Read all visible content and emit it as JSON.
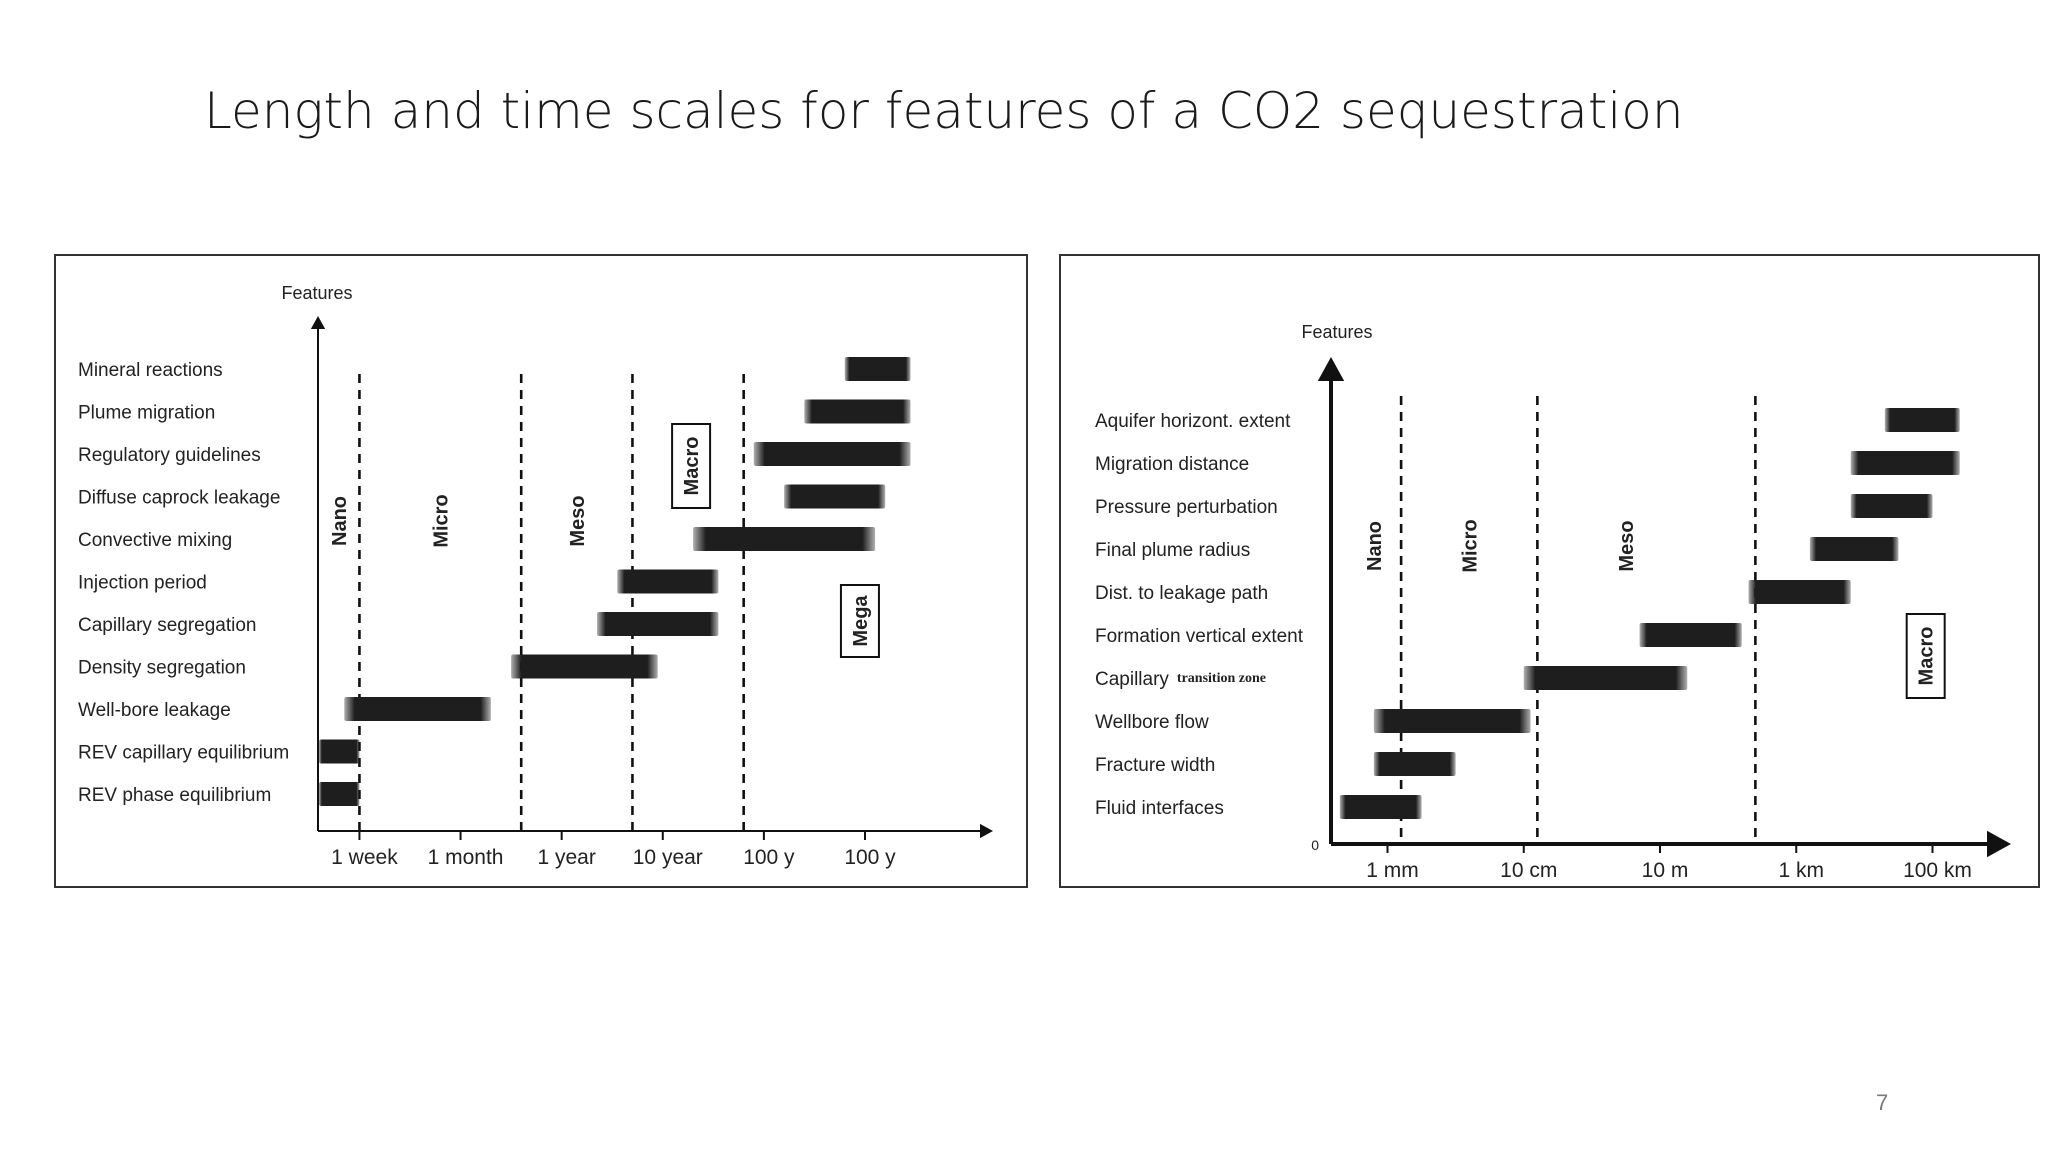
{
  "slide": {
    "title": "Length and time scales for features of a CO2 sequestration",
    "page_number": "7"
  },
  "colors": {
    "bar": "#1e1e1e",
    "axis": "#111111",
    "frame": "#333333"
  },
  "chart_data": [
    {
      "type": "bar",
      "orientation": "horizontal-range",
      "ylabel": "Features",
      "xlabel": "",
      "x_ticks": [
        "1 week",
        "1 month",
        "1 year",
        "10 year",
        "100 y",
        "100 y"
      ],
      "x_range": [
        -0.4,
        5.9
      ],
      "scale_regions": [
        "Nano",
        "Micro",
        "Meso",
        "Macro",
        "Mega"
      ],
      "region_dividers": [
        0.0,
        1.6,
        2.7,
        3.8
      ],
      "features": [
        {
          "name": "Mineral reactions",
          "start": 4.8,
          "end": 5.45
        },
        {
          "name": "Plume migration",
          "start": 4.4,
          "end": 5.45
        },
        {
          "name": "Regulatory guidelines",
          "start": 3.9,
          "end": 5.45
        },
        {
          "name": "Diffuse caprock leakage",
          "start": 4.2,
          "end": 5.2
        },
        {
          "name": "Convective mixing",
          "start": 3.3,
          "end": 5.1
        },
        {
          "name": "Injection period",
          "start": 2.55,
          "end": 3.55
        },
        {
          "name": "Capillary segregation",
          "start": 2.35,
          "end": 3.55
        },
        {
          "name": "Density segregation",
          "start": 1.5,
          "end": 2.95
        },
        {
          "name": "Well-bore leakage",
          "start": -0.15,
          "end": 1.3
        },
        {
          "name": "REV capillary equilibrium",
          "start": -0.4,
          "end": 0.0
        },
        {
          "name": "REV phase equilibrium",
          "start": -0.4,
          "end": 0.0
        }
      ]
    },
    {
      "type": "bar",
      "orientation": "horizontal-range",
      "ylabel": "Features",
      "xlabel": "",
      "origin_label": "0",
      "x_ticks": [
        "1 mm",
        "10 cm",
        "10 m",
        "1 km",
        "100 km"
      ],
      "x_range": [
        -0.4,
        4.4
      ],
      "scale_regions": [
        "Nano",
        "Micro",
        "Meso",
        "Macro"
      ],
      "region_dividers": [
        0.1,
        1.1,
        2.7
      ],
      "features": [
        {
          "name": "Aquifer horizont. extent",
          "start": 3.65,
          "end": 4.2
        },
        {
          "name": "Migration distance",
          "start": 3.4,
          "end": 4.2
        },
        {
          "name": "Pressure perturbation",
          "start": 3.4,
          "end": 4.0
        },
        {
          "name": "Final plume radius",
          "start": 3.1,
          "end": 3.75
        },
        {
          "name": "Dist. to leakage path",
          "start": 2.65,
          "end": 3.4
        },
        {
          "name": "Formation vertical extent",
          "start": 1.85,
          "end": 2.6
        },
        {
          "name": "Capillary",
          "sub_label": "transition zone",
          "start": 1.0,
          "end": 2.2
        },
        {
          "name": "Wellbore flow",
          "start": -0.1,
          "end": 1.05
        },
        {
          "name": "Fracture width",
          "start": -0.1,
          "end": 0.5
        },
        {
          "name": "Fluid interfaces",
          "start": -0.35,
          "end": 0.25
        }
      ]
    }
  ]
}
